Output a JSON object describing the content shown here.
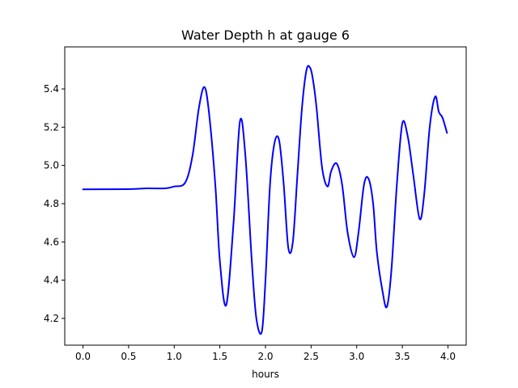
{
  "chart_data": {
    "type": "line",
    "title": "Water Depth h at gauge 6",
    "xlabel": "hours",
    "ylabel": "",
    "xlim": [
      -0.2,
      4.2
    ],
    "ylim": [
      4.06,
      5.62
    ],
    "xticks": [
      0.0,
      0.5,
      1.0,
      1.5,
      2.0,
      2.5,
      3.0,
      3.5,
      4.0
    ],
    "xtick_labels": [
      "0.0",
      "0.5",
      "1.0",
      "1.5",
      "2.0",
      "2.5",
      "3.0",
      "3.5",
      "4.0"
    ],
    "yticks": [
      4.2,
      4.4,
      4.6,
      4.8,
      5.0,
      5.2,
      5.4
    ],
    "ytick_labels": [
      "4.2",
      "4.4",
      "4.6",
      "4.8",
      "5.0",
      "5.2",
      "5.4"
    ],
    "grid": false,
    "legend": "none",
    "series": [
      {
        "color": "#0000ff",
        "x": [
          0.0,
          0.5,
          0.7,
          0.9,
          1.0,
          1.12,
          1.2,
          1.27,
          1.33,
          1.38,
          1.45,
          1.5,
          1.57,
          1.65,
          1.72,
          1.78,
          1.85,
          1.9,
          1.96,
          2.0,
          2.05,
          2.1,
          2.15,
          2.2,
          2.25,
          2.3,
          2.35,
          2.4,
          2.45,
          2.49,
          2.52,
          2.56,
          2.62,
          2.68,
          2.72,
          2.78,
          2.84,
          2.9,
          2.97,
          3.02,
          3.08,
          3.13,
          3.18,
          3.22,
          3.28,
          3.33,
          3.38,
          3.44,
          3.5,
          3.56,
          3.62,
          3.69,
          3.74,
          3.8,
          3.86,
          3.9,
          3.94,
          3.99
        ],
        "y": [
          4.875,
          4.876,
          4.88,
          4.88,
          4.89,
          4.91,
          5.05,
          5.3,
          5.41,
          5.28,
          4.9,
          4.5,
          4.27,
          4.7,
          5.23,
          5.05,
          4.5,
          4.2,
          4.13,
          4.4,
          4.9,
          5.12,
          5.13,
          4.9,
          4.57,
          4.6,
          4.95,
          5.3,
          5.5,
          5.51,
          5.45,
          5.3,
          4.99,
          4.89,
          4.97,
          5.01,
          4.9,
          4.65,
          4.52,
          4.65,
          4.9,
          4.93,
          4.8,
          4.55,
          4.35,
          4.26,
          4.45,
          4.9,
          5.22,
          5.15,
          4.95,
          4.72,
          4.85,
          5.2,
          5.36,
          5.28,
          5.25,
          5.17
        ]
      }
    ]
  }
}
